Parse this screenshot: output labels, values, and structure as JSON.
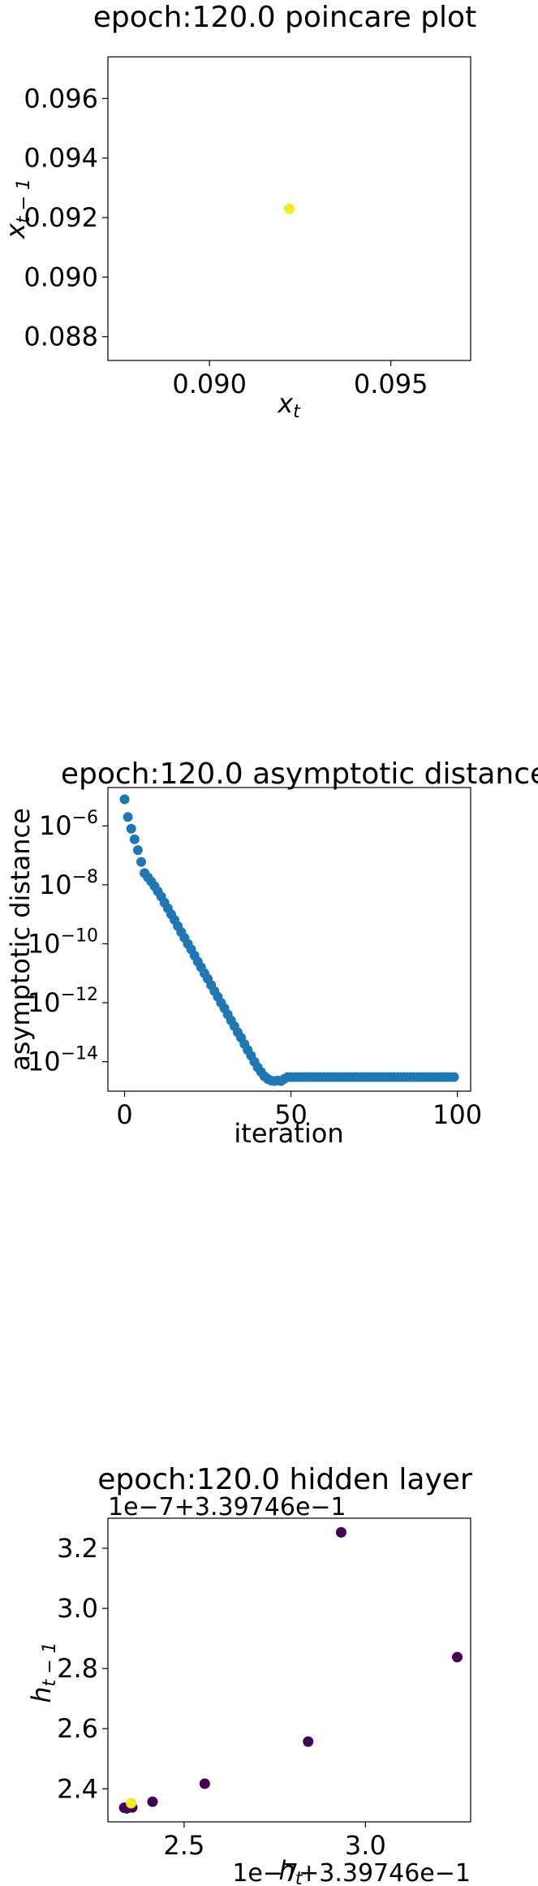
{
  "chart_data": [
    {
      "type": "scatter",
      "title": "epoch:120.0 poincare plot",
      "xlabel": "x_t",
      "ylabel": "x_{t-1}",
      "xlim": [
        0.0872,
        0.0972
      ],
      "ylim": [
        0.0872,
        0.0974
      ],
      "xticks": [
        {
          "v": 0.09,
          "label": "0.090"
        },
        {
          "v": 0.095,
          "label": "0.095"
        }
      ],
      "yticks": [
        {
          "v": 0.088,
          "label": "0.088"
        },
        {
          "v": 0.09,
          "label": "0.090"
        },
        {
          "v": 0.092,
          "label": "0.092"
        },
        {
          "v": 0.094,
          "label": "0.094"
        },
        {
          "v": 0.096,
          "label": "0.096"
        }
      ],
      "points": [
        {
          "x": 0.0922,
          "y": 0.0923,
          "color": "#fde725"
        }
      ],
      "grid": false,
      "legend": "none"
    },
    {
      "type": "scatter",
      "title": "epoch:120.0 asymptotic distance",
      "xlabel": "iteration",
      "ylabel": "asymptotic distance",
      "yscale": "log",
      "xlim": [
        -5,
        104
      ],
      "ylim": [
        1e-15,
        2e-05
      ],
      "xticks": [
        {
          "v": 0,
          "label": "0"
        },
        {
          "v": 50,
          "label": "50"
        },
        {
          "v": 100,
          "label": "100"
        }
      ],
      "yticks": [
        {
          "v": 1e-06,
          "base": "10",
          "exp": "−6"
        },
        {
          "v": 1e-08,
          "base": "10",
          "exp": "−8"
        },
        {
          "v": 1e-10,
          "base": "10",
          "exp": "−10"
        },
        {
          "v": 1e-12,
          "base": "10",
          "exp": "−12"
        },
        {
          "v": 1e-14,
          "base": "10",
          "exp": "−14"
        }
      ],
      "x": [
        0,
        1,
        2,
        3,
        4,
        5,
        6,
        7,
        8,
        9,
        10,
        11,
        12,
        13,
        14,
        15,
        16,
        17,
        18,
        19,
        20,
        21,
        22,
        23,
        24,
        25,
        26,
        27,
        28,
        29,
        30,
        31,
        32,
        33,
        34,
        35,
        36,
        37,
        38,
        39,
        40,
        41,
        42,
        43,
        44,
        45,
        46,
        47,
        48,
        49,
        50,
        51,
        52,
        53,
        54,
        55,
        56,
        57,
        58,
        59,
        60,
        61,
        62,
        63,
        64,
        65,
        66,
        67,
        68,
        69,
        70,
        71,
        72,
        73,
        74,
        75,
        76,
        77,
        78,
        79,
        80,
        81,
        82,
        83,
        84,
        85,
        86,
        87,
        88,
        89,
        90,
        91,
        92,
        93,
        94,
        95,
        96,
        97,
        98,
        99
      ],
      "y": [
        8e-06,
        2e-06,
        8e-07,
        3.5e-07,
        1.5e-07,
        6e-08,
        2.5e-08,
        1.8e-08,
        1.3e-08,
        9e-09,
        6e-09,
        4e-09,
        2.5e-09,
        1.6e-09,
        1e-09,
        6.5e-10,
        4e-10,
        2.5e-10,
        1.6e-10,
        1e-10,
        6.5e-11,
        4e-11,
        2.5e-11,
        1.6e-11,
        1e-11,
        6.5e-12,
        4e-12,
        2.5e-12,
        1.6e-12,
        1e-12,
        6.5e-13,
        4e-13,
        2.5e-13,
        1.6e-13,
        1e-13,
        6.5e-14,
        4e-14,
        2.5e-14,
        1.6e-14,
        1e-14,
        6.5e-15,
        4.5e-15,
        3.2e-15,
        2.6e-15,
        2.3e-15,
        2.2e-15,
        2.3e-15,
        2.2e-15,
        2.6e-15,
        3e-15,
        3e-15,
        3e-15,
        3e-15,
        3e-15,
        3e-15,
        3e-15,
        3e-15,
        3e-15,
        3e-15,
        3e-15,
        3e-15,
        3e-15,
        3e-15,
        3e-15,
        3e-15,
        3e-15,
        3e-15,
        3e-15,
        3e-15,
        3e-15,
        3e-15,
        3e-15,
        3e-15,
        3e-15,
        3e-15,
        3e-15,
        3e-15,
        3e-15,
        3e-15,
        3e-15,
        3e-15,
        3e-15,
        3e-15,
        3e-15,
        3e-15,
        3e-15,
        3e-15,
        3e-15,
        3e-15,
        3e-15,
        3e-15,
        3e-15,
        3e-15,
        3e-15,
        3e-15,
        3e-15,
        3e-15,
        3e-15,
        3e-15,
        3e-15
      ],
      "color": "#1f77b4",
      "grid": false,
      "legend": "none"
    },
    {
      "type": "scatter",
      "title": "epoch:120.0 hidden layer",
      "xlabel": "h_t",
      "ylabel": "h_{t-1}",
      "x_offset_text": "1e−7+3.39746e−1",
      "y_offset_text": "1e−7+3.39746e−1",
      "xlim": [
        2.29,
        3.29
      ],
      "ylim": [
        2.29,
        3.3
      ],
      "xticks": [
        {
          "v": 2.5,
          "label": "2.5"
        },
        {
          "v": 3.0,
          "label": "3.0"
        }
      ],
      "yticks": [
        {
          "v": 2.4,
          "label": "2.4"
        },
        {
          "v": 2.6,
          "label": "2.6"
        },
        {
          "v": 2.8,
          "label": "2.8"
        },
        {
          "v": 3.0,
          "label": "3.0"
        },
        {
          "v": 3.2,
          "label": "3.2"
        }
      ],
      "points": [
        {
          "x": 2.335,
          "y": 2.337,
          "color": "#440154"
        },
        {
          "x": 2.342,
          "y": 2.335,
          "color": "#440154"
        },
        {
          "x": 2.357,
          "y": 2.338,
          "color": "#440154"
        },
        {
          "x": 2.413,
          "y": 2.357,
          "color": "#440154"
        },
        {
          "x": 2.557,
          "y": 2.417,
          "color": "#440154"
        },
        {
          "x": 2.842,
          "y": 2.557,
          "color": "#440154"
        },
        {
          "x": 2.933,
          "y": 3.253,
          "color": "#440154"
        },
        {
          "x": 3.253,
          "y": 2.838,
          "color": "#440154"
        },
        {
          "x": 2.354,
          "y": 2.352,
          "color": "#fde725"
        }
      ],
      "grid": false,
      "legend": "none"
    }
  ]
}
